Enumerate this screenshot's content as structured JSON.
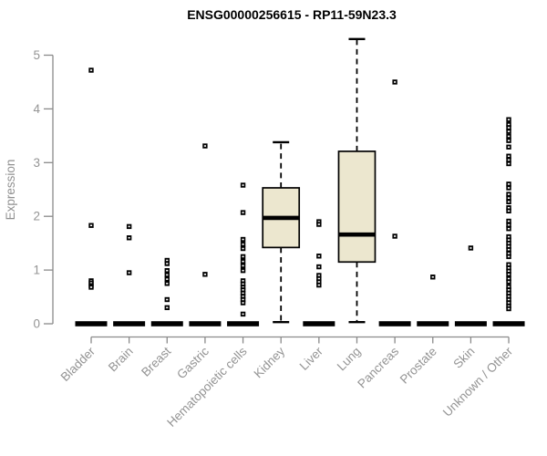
{
  "chart_data": {
    "type": "boxplot",
    "title": "ENSG00000256615 - RP11-59N23.3",
    "ylabel": "Expression",
    "xlabel": "",
    "ylim": [
      0,
      5.3
    ],
    "yticks": [
      0,
      1,
      2,
      3,
      4,
      5
    ],
    "grid": false,
    "legend": "none",
    "colors": {
      "box_fill": "#ECE7CF",
      "box_stroke": "#000000",
      "median": "#000000",
      "whisker": "#000000",
      "outlier": "#000000",
      "axis_line": "#8A8A8A",
      "tick_label": "#949494",
      "title": "#000000"
    },
    "categories": [
      "Bladder",
      "Brain",
      "Breast",
      "Gastric",
      "Hematopoietic cells",
      "Kidney",
      "Liver",
      "Lung",
      "Pancreas",
      "Prostate",
      "Skin",
      "Unknown / Other"
    ],
    "boxes": [
      {
        "category": "Bladder",
        "collapsed": true,
        "q1": 0,
        "median": 0,
        "q3": 0,
        "whisker_low": 0,
        "whisker_high": 0,
        "outliers": [
          4.72,
          1.83,
          0.8,
          0.76,
          0.71,
          0.68
        ]
      },
      {
        "category": "Brain",
        "collapsed": true,
        "q1": 0,
        "median": 0,
        "q3": 0,
        "whisker_low": 0,
        "whisker_high": 0,
        "outliers": [
          1.81,
          1.6,
          0.95
        ]
      },
      {
        "category": "Breast",
        "collapsed": true,
        "q1": 0,
        "median": 0,
        "q3": 0,
        "whisker_low": 0,
        "whisker_high": 0,
        "outliers": [
          1.18,
          1.12,
          0.99,
          0.91,
          0.83,
          0.75,
          0.45,
          0.3
        ]
      },
      {
        "category": "Gastric",
        "collapsed": true,
        "q1": 0,
        "median": 0,
        "q3": 0,
        "whisker_low": 0,
        "whisker_high": 0,
        "outliers": [
          3.31,
          0.92
        ]
      },
      {
        "category": "Hematopoietic cells",
        "collapsed": true,
        "q1": 0,
        "median": 0,
        "q3": 0,
        "whisker_low": 0,
        "whisker_high": 0,
        "outliers": [
          2.58,
          2.07,
          1.57,
          1.48,
          1.4,
          1.25,
          1.16,
          1.08,
          0.99,
          0.8,
          0.74,
          0.68,
          0.63,
          0.57,
          0.51,
          0.45,
          0.39,
          0.18
        ]
      },
      {
        "category": "Kidney",
        "collapsed": false,
        "q1": 1.42,
        "median": 1.97,
        "q3": 2.53,
        "whisker_low": 0.03,
        "whisker_high": 3.38,
        "outliers": []
      },
      {
        "category": "Liver",
        "collapsed": true,
        "q1": 0,
        "median": 0,
        "q3": 0,
        "whisker_low": 0,
        "whisker_high": 0,
        "outliers": [
          1.9,
          1.85,
          1.26,
          1.06,
          0.9,
          0.84,
          0.78,
          0.72
        ]
      },
      {
        "category": "Lung",
        "collapsed": false,
        "q1": 1.15,
        "median": 1.66,
        "q3": 3.21,
        "whisker_low": 0.03,
        "whisker_high": 5.3,
        "outliers": []
      },
      {
        "category": "Pancreas",
        "collapsed": true,
        "q1": 0,
        "median": 0,
        "q3": 0,
        "whisker_low": 0,
        "whisker_high": 0,
        "outliers": [
          4.5,
          1.63
        ]
      },
      {
        "category": "Prostate",
        "collapsed": true,
        "q1": 0,
        "median": 0,
        "q3": 0,
        "whisker_low": 0,
        "whisker_high": 0,
        "outliers": [
          0.87
        ]
      },
      {
        "category": "Skin",
        "collapsed": true,
        "q1": 0,
        "median": 0,
        "q3": 0,
        "whisker_low": 0,
        "whisker_high": 0,
        "outliers": [
          1.41
        ]
      },
      {
        "category": "Unknown / Other",
        "collapsed": true,
        "q1": 0,
        "median": 0,
        "q3": 0,
        "whisker_low": 0,
        "whisker_high": 0,
        "outliers": [
          3.8,
          3.71,
          3.65,
          3.58,
          3.49,
          3.41,
          3.29,
          3.12,
          3.05,
          2.98,
          2.6,
          2.53,
          2.41,
          2.34,
          2.27,
          2.16,
          2.1,
          1.91,
          1.84,
          1.77,
          1.62,
          1.56,
          1.5,
          1.44,
          1.38,
          1.31,
          1.25,
          1.1,
          1.04,
          0.98,
          0.92,
          0.84,
          0.78,
          0.69,
          0.63,
          0.57,
          0.51,
          0.45,
          0.39,
          0.33,
          0.28
        ]
      }
    ]
  }
}
